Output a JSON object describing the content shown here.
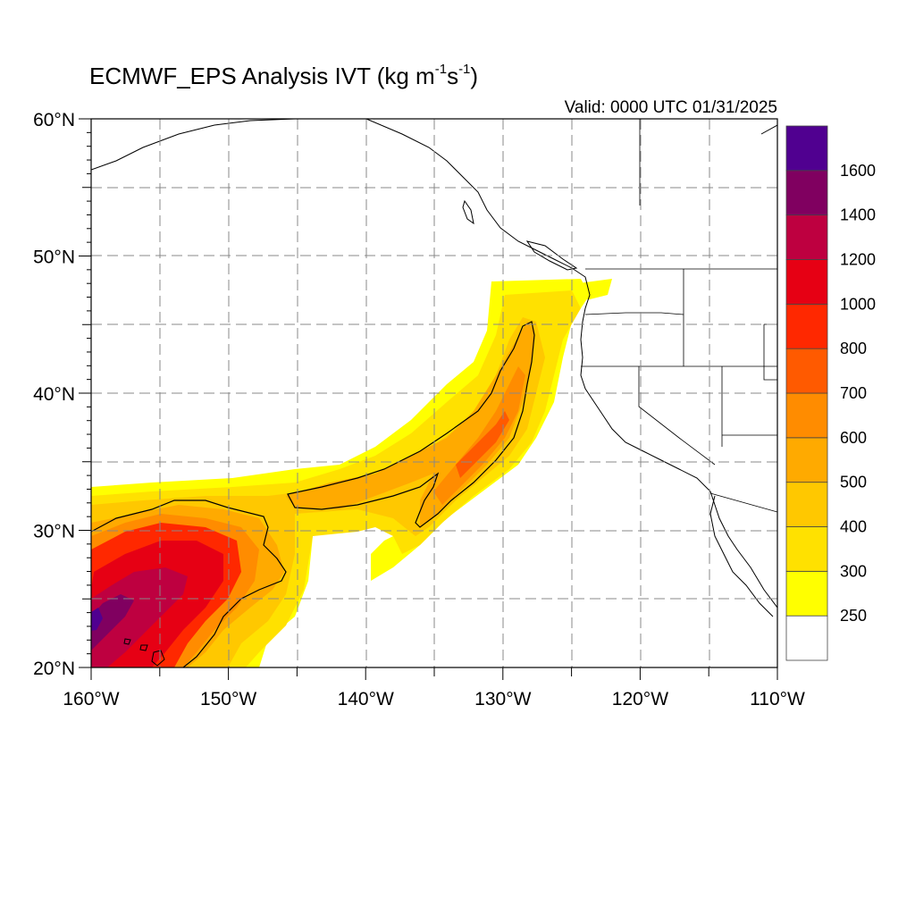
{
  "title_main": "ECMWF_EPS Analysis IVT (kg m",
  "title_sup1": "-1",
  "title_mid": "s",
  "title_sup2": "-1",
  "title_end": ")",
  "valid_text": "Valid: 0000 UTC 01/31/2025",
  "units": "kg m-1 s-1",
  "map": {
    "lon_range": [
      -160,
      -110
    ],
    "lat_range": [
      20,
      60
    ],
    "lon_ticks": [
      {
        "value": -160,
        "label": "160°W"
      },
      {
        "value": -150,
        "label": "150°W"
      },
      {
        "value": -140,
        "label": "140°W"
      },
      {
        "value": -130,
        "label": "130°W"
      },
      {
        "value": -120,
        "label": "120°W"
      },
      {
        "value": -110,
        "label": "110°W"
      }
    ],
    "lat_ticks": [
      {
        "value": 20,
        "label": "20°N"
      },
      {
        "value": 30,
        "label": "30°N"
      },
      {
        "value": 40,
        "label": "40°N"
      },
      {
        "value": 50,
        "label": "50°N"
      },
      {
        "value": 60,
        "label": "60°N"
      }
    ],
    "gridline_style": "dashed"
  },
  "colorbar": {
    "levels": [
      250,
      300,
      400,
      500,
      600,
      700,
      800,
      1000,
      1200,
      1400,
      1600
    ],
    "colors": [
      "#ffffff",
      "#ffff00",
      "#ffe100",
      "#ffc800",
      "#ffaa00",
      "#ff8c00",
      "#ff5a00",
      "#ff2800",
      "#e60014",
      "#be0040",
      "#800060",
      "#500090"
    ]
  },
  "ivt_features": [
    {
      "name": "subtropical-moisture-plume",
      "peak_ivt_approx": 1600,
      "center_lon": -157,
      "center_lat": 25
    },
    {
      "name": "atmospheric-river-filament",
      "peak_ivt_approx": 700,
      "center_lon": -131,
      "center_lat": 37
    },
    {
      "name": "pacific-northwest-landfall",
      "peak_ivt_approx": 300,
      "center_lon": -124,
      "center_lat": 47
    }
  ]
}
